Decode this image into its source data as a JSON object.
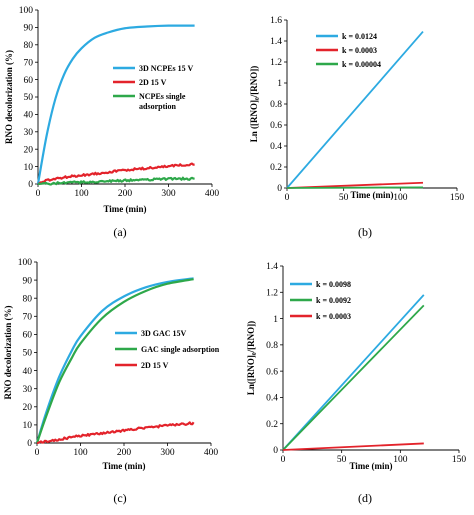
{
  "chart_data": [
    {
      "type": "line",
      "panel_label": "(a)",
      "xlabel": "Time (min)",
      "ylabel": "RNO decolorization (%)",
      "xlim": [
        0,
        400
      ],
      "ylim": [
        0,
        100
      ],
      "xticks": [
        0,
        100,
        200,
        300,
        400
      ],
      "yticks": [
        0,
        10,
        20,
        30,
        40,
        50,
        60,
        70,
        80,
        90,
        100
      ],
      "grid": false,
      "legend_position": "center-right",
      "series": [
        {
          "name": "3D NCPEs 15 V",
          "color": "#2DAAE1",
          "noisy": false,
          "x": [
            0,
            20,
            40,
            60,
            80,
            100,
            130,
            160,
            200,
            250,
            300,
            360
          ],
          "y": [
            0,
            28,
            49,
            63,
            72,
            78,
            84,
            87,
            89.5,
            90.5,
            91,
            91
          ]
        },
        {
          "name": "2D 15 V",
          "color": "#E3232B",
          "noisy": true,
          "x": [
            0,
            20,
            50,
            100,
            150,
            200,
            250,
            300,
            360
          ],
          "y": [
            0,
            2,
            3.5,
            5,
            6.5,
            8,
            9,
            10.2,
            11.5
          ]
        },
        {
          "name": "NCPEs single adsorption",
          "color": "#2EA84A",
          "noisy": true,
          "x": [
            0,
            50,
            100,
            150,
            200,
            250,
            300,
            360
          ],
          "y": [
            0,
            0.5,
            1,
            1.5,
            2,
            2.5,
            3,
            3
          ]
        }
      ]
    },
    {
      "type": "line",
      "panel_label": "(b)",
      "xlabel": "Time (min)",
      "ylabel": "Ln ([RNO]₀/[RNO])",
      "xlim": [
        0,
        150
      ],
      "ylim": [
        0,
        1.6
      ],
      "xticks": [
        0,
        50,
        100,
        150
      ],
      "yticks": [
        0,
        0.2,
        0.4,
        0.6,
        0.8,
        1,
        1.2,
        1.4,
        1.6
      ],
      "ytick_labels": [
        "0",
        "0.2",
        "0.4",
        "0.6",
        "0.8",
        "1",
        "1.2",
        "1.4",
        "1.6"
      ],
      "grid": false,
      "legend_position": "top-left",
      "series": [
        {
          "name": "k = 0.0124",
          "color": "#2DAAE1",
          "x": [
            0,
            120
          ],
          "y": [
            0,
            1.49
          ]
        },
        {
          "name": "k = 0.0003",
          "color": "#E3232B",
          "x": [
            0,
            120
          ],
          "y": [
            0,
            0.05
          ]
        },
        {
          "name": "k = 0.00004",
          "color": "#2EA84A",
          "x": [
            0,
            120
          ],
          "y": [
            0,
            0.006
          ]
        }
      ]
    },
    {
      "type": "line",
      "panel_label": "(c)",
      "xlabel": "Time (min)",
      "ylabel": "RNO decolorization (%)",
      "xlim": [
        0,
        400
      ],
      "ylim": [
        0,
        100
      ],
      "xticks": [
        0,
        100,
        200,
        300,
        400
      ],
      "yticks": [
        0,
        10,
        20,
        30,
        40,
        50,
        60,
        70,
        80,
        90,
        100
      ],
      "grid": false,
      "legend_position": "center-right",
      "series": [
        {
          "name": "3D GAC 15V",
          "color": "#2DAAE1",
          "noisy": false,
          "x": [
            0,
            20,
            50,
            80,
            100,
            150,
            200,
            250,
            300,
            360
          ],
          "y": [
            0,
            16,
            36,
            51,
            59,
            73,
            81,
            86,
            89,
            91
          ]
        },
        {
          "name": "GAC single adsorption",
          "color": "#2EA84A",
          "noisy": false,
          "x": [
            0,
            20,
            50,
            80,
            100,
            150,
            200,
            250,
            300,
            360
          ],
          "y": [
            0,
            14,
            33,
            47,
            55,
            69,
            78,
            84,
            88,
            90.5
          ]
        },
        {
          "name": "2D 15 V",
          "color": "#E3232B",
          "noisy": true,
          "x": [
            0,
            50,
            100,
            150,
            200,
            250,
            300,
            360
          ],
          "y": [
            0,
            2,
            4,
            5.5,
            7,
            8.5,
            9.7,
            11
          ]
        }
      ]
    },
    {
      "type": "line",
      "panel_label": "(d)",
      "xlabel": "Time (min)",
      "ylabel": "Ln([RNO]₀/[RNO])",
      "xlim": [
        0,
        150
      ],
      "ylim": [
        0,
        1.4
      ],
      "xticks": [
        0,
        50,
        100,
        150
      ],
      "yticks": [
        0,
        0.2,
        0.4,
        0.6,
        0.8,
        1,
        1.2,
        1.4
      ],
      "ytick_labels": [
        "0",
        "0.2",
        "0.4",
        "0.6",
        "0.8",
        "1",
        "1.2",
        "1.4"
      ],
      "grid": false,
      "legend_position": "top-left",
      "series": [
        {
          "name": "k = 0.0098",
          "color": "#2DAAE1",
          "x": [
            0,
            120
          ],
          "y": [
            0,
            1.18
          ]
        },
        {
          "name": "k = 0.0092",
          "color": "#2EA84A",
          "x": [
            0,
            120
          ],
          "y": [
            0,
            1.1
          ]
        },
        {
          "name": "k = 0.0003",
          "color": "#E3232B",
          "x": [
            0,
            120
          ],
          "y": [
            0,
            0.05
          ]
        }
      ]
    }
  ]
}
